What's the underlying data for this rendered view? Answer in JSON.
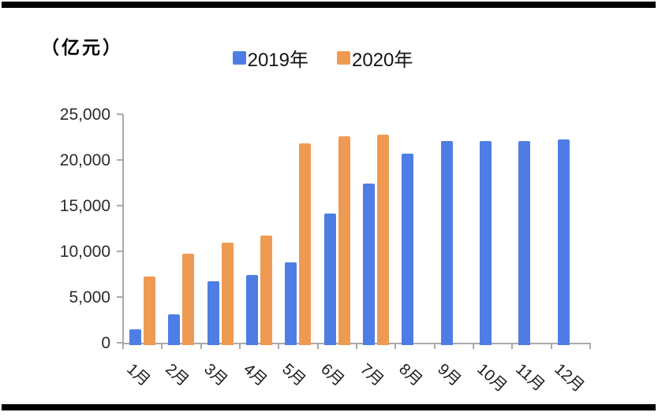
{
  "chart_data": {
    "type": "bar",
    "title": "（亿元）",
    "categories": [
      "1月",
      "2月",
      "3月",
      "4月",
      "5月",
      "6月",
      "7月",
      "8月",
      "9月",
      "10月",
      "11月",
      "12月"
    ],
    "series": [
      {
        "name": "2019年",
        "color": "#4e7de4",
        "values": [
          1450,
          3100,
          6700,
          7400,
          8800,
          14100,
          17450,
          20650,
          22050,
          22100,
          22100,
          22250
        ]
      },
      {
        "name": "2020年",
        "color": "#ef9a52",
        "values": [
          7250,
          9700,
          10950,
          11700,
          21800,
          22550,
          22750,
          null,
          null,
          null,
          null,
          null
        ]
      }
    ],
    "xlabel": "",
    "ylabel": "（亿元）",
    "ylim": [
      0,
      25000
    ],
    "yticks": [
      0,
      5000,
      10000,
      15000,
      20000,
      25000
    ],
    "ytick_labels": [
      "0",
      "5,000",
      "10,000",
      "15,000",
      "20,000",
      "25,000"
    ],
    "grid": false,
    "legend_position": "top-center",
    "axis_color": "#a9a9a9"
  }
}
